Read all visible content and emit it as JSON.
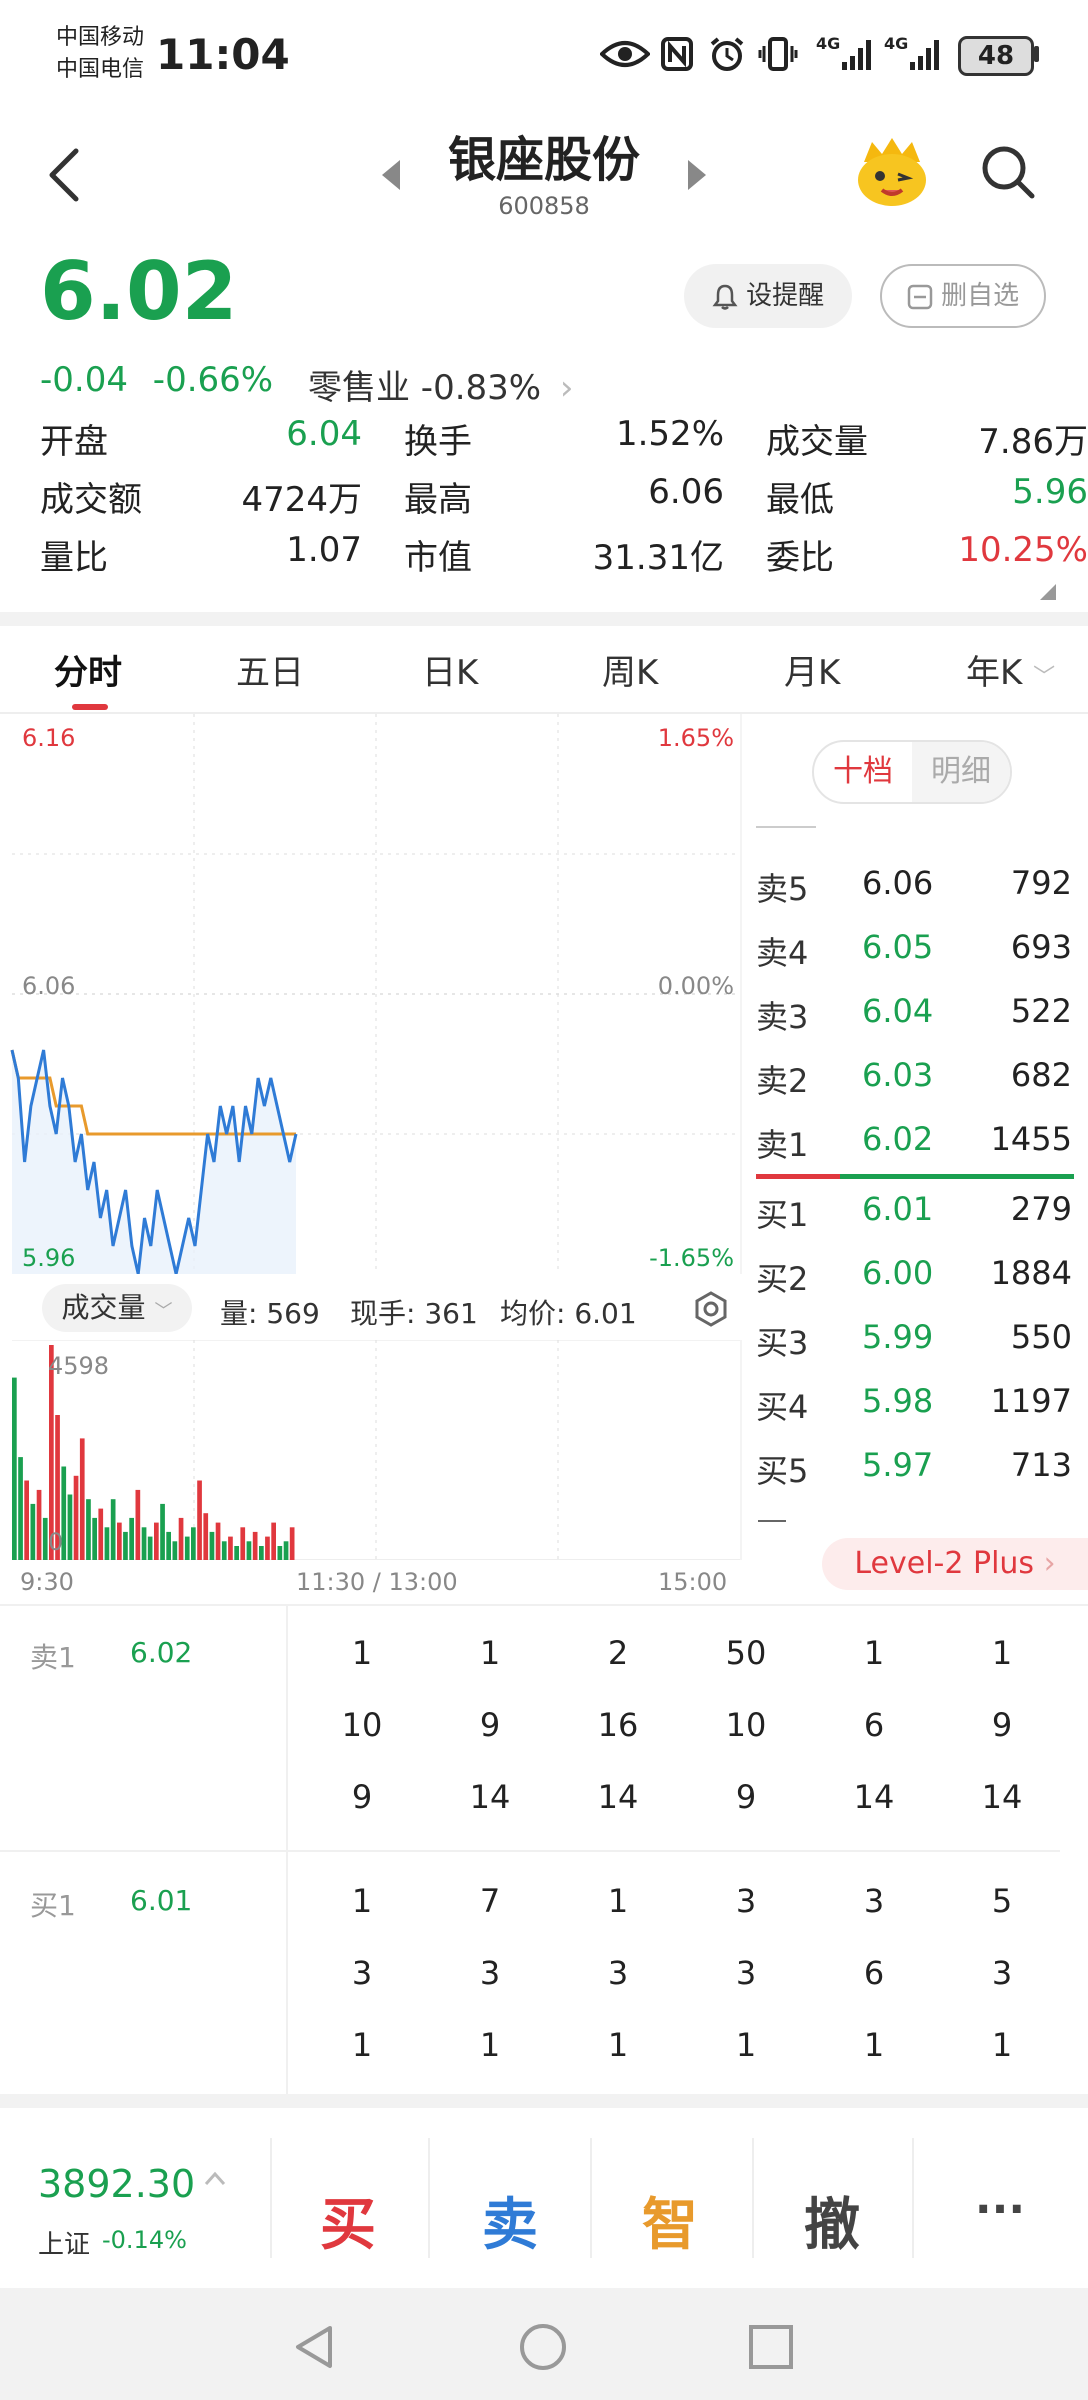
{
  "status_bar": {
    "carrier1": "中国移动",
    "carrier2": "中国电信",
    "time": "11:04",
    "battery": "48",
    "net1": "4G",
    "net2": "4G"
  },
  "header": {
    "stock_name": "银座股份",
    "stock_code": "600858"
  },
  "quote": {
    "price": "6.02",
    "change": "-0.04",
    "change_pct": "-0.66%",
    "sector": "零售业 -0.83%",
    "alert_label": "设提醒",
    "delete_label": "删自选"
  },
  "stats": [
    {
      "label": "开盘",
      "value": "6.04",
      "color": "green"
    },
    {
      "label": "换手",
      "value": "1.52%",
      "color": "black"
    },
    {
      "label": "成交量",
      "value": "7.86万",
      "color": "black"
    },
    {
      "label": "成交额",
      "value": "4724万",
      "color": "black"
    },
    {
      "label": "最高",
      "value": "6.06",
      "color": "black"
    },
    {
      "label": "最低",
      "value": "5.96",
      "color": "green"
    },
    {
      "label": "量比",
      "value": "1.07",
      "color": "black"
    },
    {
      "label": "市值",
      "value": "31.31亿",
      "color": "black"
    },
    {
      "label": "委比",
      "value": "10.25%",
      "color": "red"
    }
  ],
  "tabs": [
    "分时",
    "五日",
    "日K",
    "周K",
    "月K",
    "年K"
  ],
  "chart": {
    "y_top": "6.16",
    "y_mid": "6.06",
    "y_bot": "5.96",
    "pct_top": "1.65%",
    "pct_mid": "0.00%",
    "pct_bot": "-1.65%",
    "volume_selector": "成交量",
    "vol_info": "量: 569",
    "hand_info": "现手: 361",
    "avg_info": "均价: 6.01",
    "vol_max": "4598",
    "vol_zero": "0",
    "t_start": "9:30",
    "t_mid": "11:30 / 13:00",
    "t_end": "15:00"
  },
  "chart_data": {
    "type": "line",
    "ylim": [
      5.96,
      6.16
    ],
    "price_series": [
      6.04,
      6.03,
      6.0,
      6.02,
      6.03,
      6.04,
      6.02,
      6.01,
      6.03,
      6.02,
      6.0,
      6.01,
      5.99,
      6.0,
      5.98,
      5.99,
      5.97,
      5.98,
      5.99,
      5.97,
      5.96,
      5.98,
      5.97,
      5.99,
      5.98,
      5.97,
      5.96,
      5.97,
      5.98,
      5.97,
      5.99,
      6.01,
      6.0,
      6.02,
      6.01,
      6.02,
      6.0,
      6.02,
      6.01,
      6.03,
      6.02,
      6.03,
      6.02,
      6.01,
      6.0,
      6.01
    ],
    "avg_series": [
      6.04,
      6.03,
      6.03,
      6.03,
      6.03,
      6.03,
      6.03,
      6.02,
      6.02,
      6.02,
      6.02,
      6.02,
      6.01,
      6.01,
      6.01,
      6.01,
      6.01,
      6.01,
      6.01,
      6.01,
      6.01,
      6.01,
      6.01,
      6.01,
      6.01,
      6.01,
      6.01,
      6.01,
      6.01,
      6.01,
      6.01,
      6.01,
      6.01,
      6.01,
      6.01,
      6.01,
      6.01,
      6.01,
      6.01,
      6.01,
      6.01,
      6.01,
      6.01,
      6.01,
      6.01,
      6.01
    ],
    "volume_ylim": [
      0,
      4598
    ],
    "volumes": [
      3900,
      2200,
      1700,
      1200,
      1500,
      900,
      4598,
      3100,
      2000,
      1400,
      1800,
      2600,
      1300,
      900,
      1100,
      700,
      1300,
      800,
      600,
      900,
      1500,
      700,
      500,
      800,
      1200,
      600,
      400,
      900,
      500,
      700,
      1700,
      1000,
      600,
      800,
      400,
      500,
      300,
      700,
      400,
      600,
      300,
      500,
      800,
      300,
      400,
      700
    ],
    "volume_colors": [
      "green",
      "green",
      "red",
      "green",
      "red",
      "green",
      "red",
      "red",
      "green",
      "green",
      "red",
      "red",
      "green",
      "green",
      "red",
      "green",
      "green",
      "red",
      "green",
      "green",
      "red",
      "green",
      "green",
      "red",
      "green",
      "green",
      "green",
      "red",
      "green",
      "green",
      "red",
      "red",
      "green",
      "red",
      "green",
      "red",
      "green",
      "red",
      "green",
      "red",
      "green",
      "red",
      "red",
      "green",
      "green",
      "red"
    ]
  },
  "order_book": {
    "toggle_left": "十档",
    "toggle_right": "明细",
    "asks": [
      {
        "label": "卖5",
        "price": "6.06",
        "qty": "792",
        "color": "black"
      },
      {
        "label": "卖4",
        "price": "6.05",
        "qty": "693",
        "color": "green"
      },
      {
        "label": "卖3",
        "price": "6.04",
        "qty": "522",
        "color": "green"
      },
      {
        "label": "卖2",
        "price": "6.03",
        "qty": "682",
        "color": "green"
      },
      {
        "label": "卖1",
        "price": "6.02",
        "qty": "1455",
        "color": "green"
      }
    ],
    "bids": [
      {
        "label": "买1",
        "price": "6.01",
        "qty": "279"
      },
      {
        "label": "买2",
        "price": "6.00",
        "qty": "1884"
      },
      {
        "label": "买3",
        "price": "5.99",
        "qty": "550"
      },
      {
        "label": "买4",
        "price": "5.98",
        "qty": "1197"
      },
      {
        "label": "买5",
        "price": "5.97",
        "qty": "713"
      }
    ],
    "level2": "Level-2 Plus"
  },
  "queue": {
    "sell_label": "卖1",
    "sell_price": "6.02",
    "sell_rows": [
      [
        "1",
        "1",
        "2",
        "50",
        "1",
        "1"
      ],
      [
        "10",
        "9",
        "16",
        "10",
        "6",
        "9"
      ],
      [
        "9",
        "14",
        "14",
        "9",
        "14",
        "14"
      ]
    ],
    "buy_label": "买1",
    "buy_price": "6.01",
    "buy_rows": [
      [
        "1",
        "7",
        "1",
        "3",
        "3",
        "5"
      ],
      [
        "3",
        "3",
        "3",
        "3",
        "6",
        "3"
      ],
      [
        "1",
        "1",
        "1",
        "1",
        "1",
        "1"
      ]
    ]
  },
  "bottom": {
    "index_value": "3892.30",
    "index_name": "上证",
    "index_change": "-0.14%",
    "buy": "买",
    "sell": "卖",
    "smart": "智",
    "cancel": "撤",
    "more": "···"
  },
  "colors": {
    "green": "#1aa050",
    "red": "#e0383e",
    "blue": "#2f7bd6",
    "orange": "#e89a2c"
  }
}
